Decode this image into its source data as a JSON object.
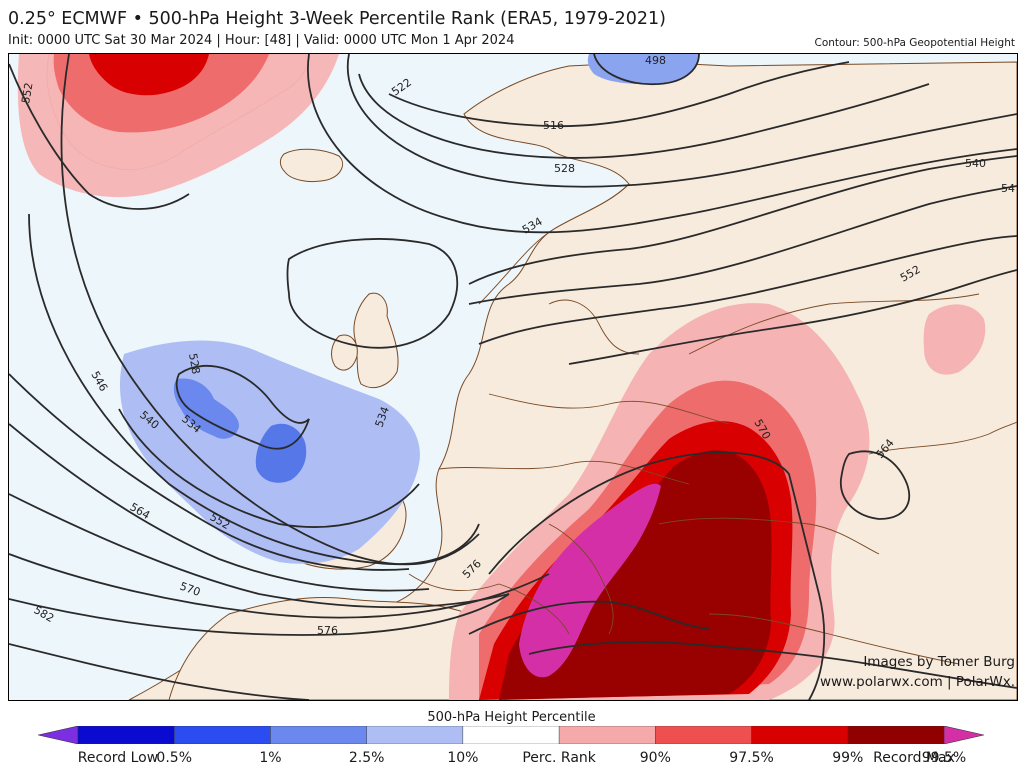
{
  "header": {
    "title": "0.25° ECMWF • 500-hPa Height 3-Week Percentile Rank (ERA5, 1979-2021)",
    "subtitle": "Init: 0000 UTC Sat 30 Mar 2024 | Hour: [48] | Valid: 0000 UTC Mon 1 Apr 2024",
    "contour_label": "Contour: 500-hPa Geopotential Height"
  },
  "credits": {
    "line1": "Images by Tomer Burg",
    "line2": "www.polarwx.com | PolarWx."
  },
  "colorbar": {
    "title": "500-hPa Height Percentile",
    "colors": [
      "#7b2fe0",
      "#0a0ad0",
      "#2a4cf0",
      "#6a88ee",
      "#aebef5",
      "#ffffff",
      "#f6a9a9",
      "#ee5050",
      "#d80000",
      "#900000",
      "#d42fa6"
    ],
    "ticks": [
      "Record Low",
      "0.5%",
      "1%",
      "2.5%",
      "10%",
      "Perc. Rank",
      "90%",
      "97.5%",
      "99%",
      "99.5%",
      "Record Max"
    ]
  },
  "contour_labels": [
    "552",
    "522",
    "498",
    "516",
    "528",
    "540",
    "54",
    "534",
    "552",
    "528",
    "534",
    "534",
    "540",
    "546",
    "564",
    "552",
    "570",
    "582",
    "576",
    "576",
    "570",
    "564"
  ]
}
